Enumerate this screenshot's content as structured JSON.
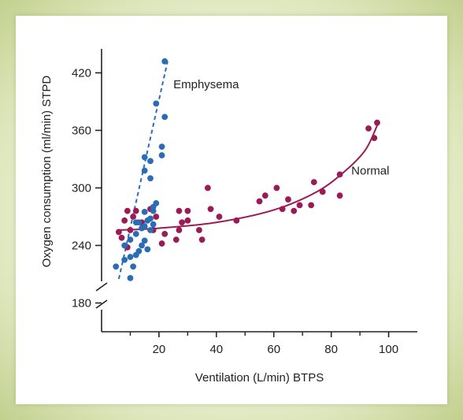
{
  "chart_data": {
    "type": "scatter",
    "xlabel": "Ventilation (L/min) BTPS",
    "ylabel": "Oxygen consumption (ml/min) STPD",
    "xlim": [
      0,
      110
    ],
    "ylim": [
      150,
      445
    ],
    "y_axis_break": true,
    "x_ticks": [
      20,
      40,
      60,
      80,
      100
    ],
    "y_ticks": [
      180,
      240,
      300,
      360,
      420
    ],
    "grid": false,
    "series": [
      {
        "name": "Emphysema",
        "color": "#2a6db5",
        "marker": "circle",
        "points": [
          [
            5,
            218
          ],
          [
            8,
            240
          ],
          [
            8,
            225
          ],
          [
            10,
            206
          ],
          [
            10,
            228
          ],
          [
            10,
            246
          ],
          [
            11,
            218
          ],
          [
            12,
            230
          ],
          [
            12,
            252
          ],
          [
            12,
            264
          ],
          [
            13,
            234
          ],
          [
            13,
            264
          ],
          [
            14,
            240
          ],
          [
            14,
            258
          ],
          [
            15,
            245
          ],
          [
            15,
            260
          ],
          [
            15,
            275
          ],
          [
            15,
            318
          ],
          [
            15,
            332
          ],
          [
            16,
            236
          ],
          [
            16,
            266
          ],
          [
            17,
            256
          ],
          [
            17,
            268
          ],
          [
            17,
            328
          ],
          [
            17,
            310
          ],
          [
            18,
            262
          ],
          [
            18,
            276
          ],
          [
            18,
            280
          ],
          [
            19,
            284
          ],
          [
            19,
            388
          ],
          [
            21,
            334
          ],
          [
            21,
            343
          ],
          [
            22,
            374
          ],
          [
            22,
            432
          ]
        ],
        "trend": {
          "style": "dashed",
          "from": [
            6,
            205
          ],
          "to": [
            23,
            432
          ]
        }
      },
      {
        "name": "Normal",
        "color": "#9a1b56",
        "marker": "circle",
        "points": [
          [
            6,
            254
          ],
          [
            7,
            248
          ],
          [
            8,
            266
          ],
          [
            9,
            276
          ],
          [
            9,
            238
          ],
          [
            10,
            256
          ],
          [
            11,
            270
          ],
          [
            12,
            276
          ],
          [
            14,
            264
          ],
          [
            17,
            278
          ],
          [
            18,
            256
          ],
          [
            19,
            270
          ],
          [
            21,
            242
          ],
          [
            22,
            252
          ],
          [
            26,
            246
          ],
          [
            27,
            256
          ],
          [
            27,
            276
          ],
          [
            28,
            264
          ],
          [
            30,
            276
          ],
          [
            30,
            266
          ],
          [
            34,
            256
          ],
          [
            35,
            246
          ],
          [
            37,
            300
          ],
          [
            38,
            278
          ],
          [
            41,
            270
          ],
          [
            47,
            266
          ],
          [
            55,
            286
          ],
          [
            57,
            292
          ],
          [
            61,
            300
          ],
          [
            63,
            278
          ],
          [
            65,
            288
          ],
          [
            67,
            276
          ],
          [
            69,
            282
          ],
          [
            73,
            282
          ],
          [
            74,
            306
          ],
          [
            77,
            296
          ],
          [
            83,
            292
          ],
          [
            83,
            314
          ],
          [
            93,
            362
          ],
          [
            95,
            352
          ],
          [
            96,
            368
          ]
        ],
        "trend": {
          "style": "solid",
          "curve": [
            [
              6,
              256
            ],
            [
              20,
              258
            ],
            [
              40,
              264
            ],
            [
              60,
              277
            ],
            [
              75,
              296
            ],
            [
              85,
              318
            ],
            [
              92,
              340
            ],
            [
              96,
              365
            ]
          ]
        }
      }
    ]
  }
}
